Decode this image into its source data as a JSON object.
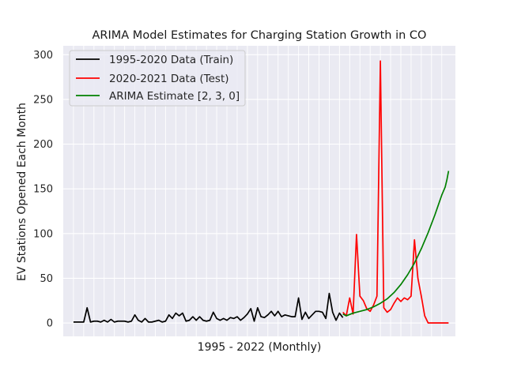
{
  "chart_data": {
    "type": "line",
    "title": "ARIMA Model Estimates for Charging Station Growth in CO",
    "xlabel": "1995 - 2022 (Monthly)",
    "ylabel": "EV Stations Opened Each Month",
    "ylim": [
      -15,
      310
    ],
    "yticks": [
      0,
      50,
      100,
      150,
      200,
      250,
      300
    ],
    "grid": true,
    "legend_position": "top-left",
    "colors": {
      "background": "#eaeaf2",
      "grid": "#ffffff",
      "train": "#000000",
      "test": "#ff0000",
      "estimate": "#008000"
    },
    "x_range": [
      -3,
      112
    ],
    "series": [
      {
        "name": "1995-2020 Data (Train)",
        "x": [
          0,
          1,
          2,
          3,
          4,
          5,
          6,
          7,
          8,
          9,
          10,
          11,
          12,
          13,
          14,
          15,
          16,
          17,
          18,
          19,
          20,
          21,
          22,
          23,
          24,
          25,
          26,
          27,
          28,
          29,
          30,
          31,
          32,
          33,
          34,
          35,
          36,
          37,
          38,
          39,
          40,
          41,
          42,
          43,
          44,
          45,
          46,
          47,
          48,
          49,
          50,
          51,
          52,
          53,
          54,
          55,
          56,
          57,
          58,
          59,
          60,
          61,
          62,
          63,
          64,
          65,
          66,
          67,
          68,
          69,
          70,
          71,
          72,
          73,
          74,
          75,
          76,
          77,
          78,
          79
        ],
        "values": [
          1,
          1,
          1,
          1,
          17,
          1,
          2,
          2,
          1,
          3,
          1,
          4,
          1,
          2,
          2,
          2,
          1,
          2,
          9,
          3,
          1,
          5,
          1,
          1,
          2,
          3,
          1,
          2,
          9,
          5,
          11,
          8,
          11,
          2,
          3,
          7,
          3,
          7,
          3,
          2,
          3,
          12,
          5,
          3,
          5,
          3,
          6,
          5,
          7,
          3,
          6,
          10,
          16,
          2,
          17,
          7,
          6,
          9,
          13,
          8,
          13,
          7,
          9,
          8,
          7,
          7,
          28,
          4,
          12,
          5,
          9,
          13,
          13,
          12,
          5,
          33,
          12,
          3,
          11,
          6
        ],
        "color": "#000000"
      },
      {
        "name": "2020-2021 Data (Test)",
        "x": [
          79,
          80,
          81,
          82,
          83,
          84,
          85,
          86,
          87,
          88,
          89,
          90,
          91,
          92,
          93,
          94,
          95,
          96,
          97,
          98,
          99,
          100,
          101,
          102,
          103,
          104,
          105,
          106,
          107,
          108,
          109,
          110
        ],
        "values": [
          12,
          8,
          28,
          10,
          99,
          30,
          25,
          16,
          13,
          20,
          30,
          293,
          17,
          12,
          15,
          22,
          28,
          24,
          28,
          26,
          30,
          93,
          50,
          30,
          8,
          0,
          0,
          0,
          0,
          0,
          0,
          0
        ],
        "color": "#ff0000"
      },
      {
        "name": "ARIMA Estimate [2, 3, 0]",
        "x": [
          79,
          80,
          82,
          84,
          86,
          88,
          90,
          92,
          94,
          96,
          98,
          100,
          102,
          104,
          106,
          108,
          109,
          109.5,
          110
        ],
        "values": [
          10,
          8,
          11,
          13,
          15,
          18,
          22,
          27,
          34,
          43,
          54,
          67,
          83,
          101,
          121,
          143,
          152,
          160,
          170
        ],
        "color": "#008000"
      }
    ]
  }
}
